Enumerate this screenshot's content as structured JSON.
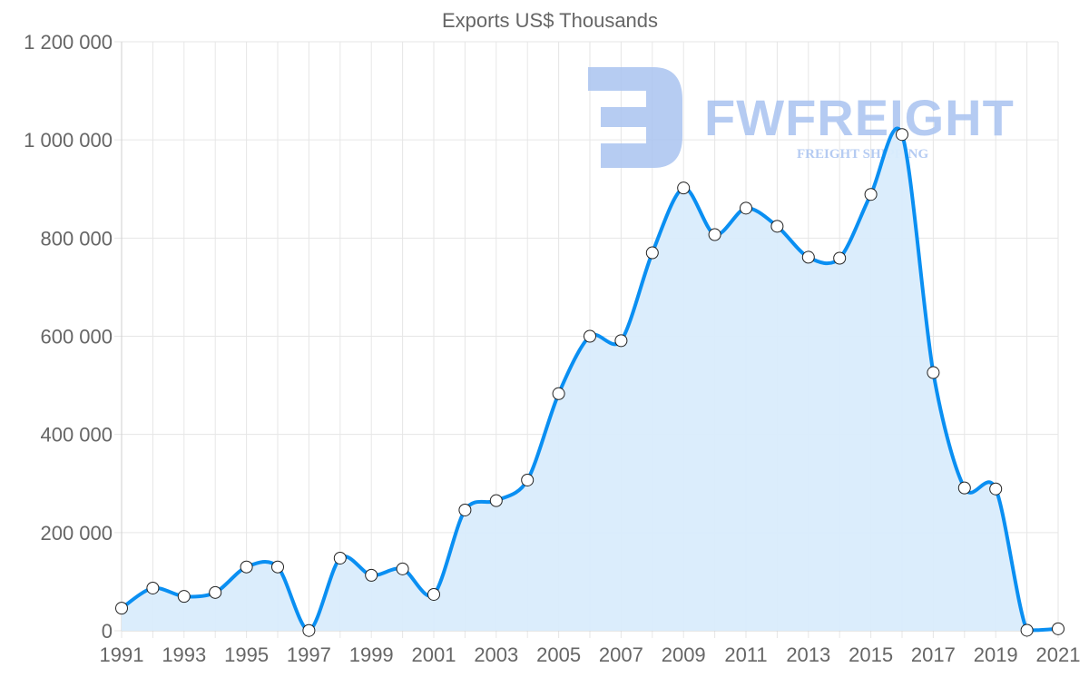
{
  "chart_data": {
    "type": "line",
    "title": "Exports US$ Thousands",
    "xlabel": "",
    "ylabel": "",
    "x": [
      1991,
      1992,
      1993,
      1994,
      1995,
      1996,
      1997,
      1998,
      1999,
      2000,
      2001,
      2002,
      2003,
      2004,
      2005,
      2006,
      2007,
      2008,
      2009,
      2010,
      2011,
      2012,
      2013,
      2014,
      2015,
      2016,
      2017,
      2018,
      2019,
      2020,
      2021
    ],
    "series": [
      {
        "name": "Exports US$ Thousands",
        "values": [
          46000,
          87000,
          70000,
          78000,
          130000,
          130000,
          500,
          148000,
          113000,
          126000,
          74000,
          246000,
          265000,
          307000,
          483000,
          600000,
          591000,
          770000,
          902000,
          807000,
          861000,
          824000,
          761000,
          759000,
          889000,
          1011000,
          526000,
          291000,
          289000,
          1000,
          4000
        ]
      }
    ],
    "ylim": [
      0,
      1200000
    ],
    "xlim": [
      1991,
      2021
    ],
    "yticks": [
      "0",
      "200 000",
      "400 000",
      "600 000",
      "800 000",
      "1 000 000",
      "1 200 000"
    ],
    "xticks": [
      "1991",
      "1993",
      "1995",
      "1997",
      "1999",
      "2001",
      "2003",
      "2005",
      "2007",
      "2009",
      "2011",
      "2013",
      "2015",
      "2017",
      "2019",
      "2021"
    ],
    "grid": true,
    "legend": "none",
    "colors": {
      "line": "#0a8ff2",
      "fill": "#d9ecfc",
      "grid": "#e6e6e6",
      "point_fill": "#ffffff"
    }
  },
  "watermark": {
    "brand": "FWFREIGHT",
    "tagline": "FREIGHT SHIPPING",
    "color": "#a9c3f0"
  }
}
